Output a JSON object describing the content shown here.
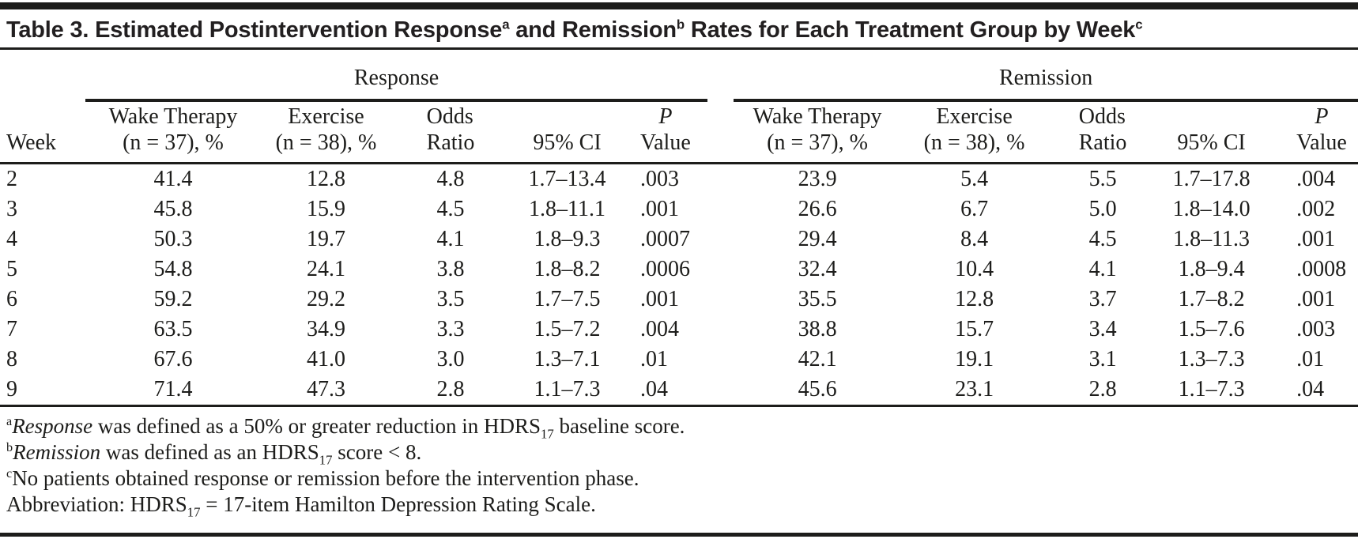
{
  "title": {
    "segments": [
      {
        "style": "normal",
        "text": "Table 3. Estimated Postintervention Response"
      },
      {
        "style": "sup",
        "text": "a"
      },
      {
        "style": "normal",
        "text": " and Remission"
      },
      {
        "style": "sup",
        "text": "b"
      },
      {
        "style": "normal",
        "text": " Rates for Each Treatment Group by Week"
      },
      {
        "style": "sup",
        "text": "c"
      }
    ]
  },
  "table": {
    "group_headers": {
      "response": "Response",
      "remission": "Remission"
    },
    "week_header": "Week",
    "sub_headers": {
      "wake_line1": "Wake Therapy",
      "wake_line2": "(n = 37), %",
      "exercise_line1": "Exercise",
      "exercise_line2": "(n = 38), %",
      "odds_line1": "Odds",
      "odds_line2": "Ratio",
      "ci": "95% CI",
      "p_line1": "P",
      "p_line2": "Value"
    },
    "column_keys": [
      "wake",
      "exercise",
      "odds-ratio",
      "ci",
      "p"
    ],
    "rows": [
      {
        "week": "2",
        "response": [
          "41.4",
          "12.8",
          "4.8",
          "1.7–13.4",
          ".003"
        ],
        "remission": [
          "23.9",
          "5.4",
          "5.5",
          "1.7–17.8",
          ".004"
        ]
      },
      {
        "week": "3",
        "response": [
          "45.8",
          "15.9",
          "4.5",
          "1.8–11.1",
          ".001"
        ],
        "remission": [
          "26.6",
          "6.7",
          "5.0",
          "1.8–14.0",
          ".002"
        ]
      },
      {
        "week": "4",
        "response": [
          "50.3",
          "19.7",
          "4.1",
          "1.8–9.3",
          ".0007"
        ],
        "remission": [
          "29.4",
          "8.4",
          "4.5",
          "1.8–11.3",
          ".001"
        ]
      },
      {
        "week": "5",
        "response": [
          "54.8",
          "24.1",
          "3.8",
          "1.8–8.2",
          ".0006"
        ],
        "remission": [
          "32.4",
          "10.4",
          "4.1",
          "1.8–9.4",
          ".0008"
        ]
      },
      {
        "week": "6",
        "response": [
          "59.2",
          "29.2",
          "3.5",
          "1.7–7.5",
          ".001"
        ],
        "remission": [
          "35.5",
          "12.8",
          "3.7",
          "1.7–8.2",
          ".001"
        ]
      },
      {
        "week": "7",
        "response": [
          "63.5",
          "34.9",
          "3.3",
          "1.5–7.2",
          ".004"
        ],
        "remission": [
          "38.8",
          "15.7",
          "3.4",
          "1.5–7.6",
          ".003"
        ]
      },
      {
        "week": "8",
        "response": [
          "67.6",
          "41.0",
          "3.0",
          "1.3–7.1",
          ".01"
        ],
        "remission": [
          "42.1",
          "19.1",
          "3.1",
          "1.3–7.3",
          ".01"
        ]
      },
      {
        "week": "9",
        "response": [
          "71.4",
          "47.3",
          "2.8",
          "1.1–7.3",
          ".04"
        ],
        "remission": [
          "45.6",
          "23.1",
          "2.8",
          "1.1–7.3",
          ".04"
        ]
      }
    ]
  },
  "footnotes": [
    [
      {
        "style": "sup",
        "text": "a"
      },
      {
        "style": "italic",
        "text": "Response"
      },
      {
        "style": "normal",
        "text": " was defined as a 50% or greater reduction in HDRS"
      },
      {
        "style": "sub",
        "text": "17"
      },
      {
        "style": "normal",
        "text": " baseline score."
      }
    ],
    [
      {
        "style": "sup",
        "text": "b"
      },
      {
        "style": "italic",
        "text": "Remission"
      },
      {
        "style": "normal",
        "text": " was defined as an HDRS"
      },
      {
        "style": "sub",
        "text": "17"
      },
      {
        "style": "normal",
        "text": " score < 8."
      }
    ],
    [
      {
        "style": "sup",
        "text": "c"
      },
      {
        "style": "normal",
        "text": "No patients obtained response or remission before the intervention phase."
      }
    ],
    [
      {
        "style": "normal",
        "text": "Abbreviation: HDRS"
      },
      {
        "style": "sub",
        "text": "17"
      },
      {
        "style": "normal",
        "text": " = 17-item Hamilton Depression Rating Scale."
      }
    ]
  ],
  "colors": {
    "text": "#1d1d1b",
    "rule": "#1d1d1b",
    "background": "#ffffff"
  }
}
